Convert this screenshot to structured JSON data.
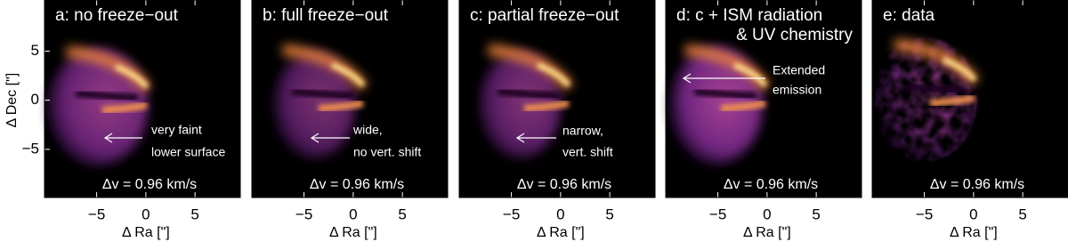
{
  "chart_data": [
    {
      "type": "image",
      "title_lines": [
        "a: no freeze−out"
      ],
      "annotation": [
        "very faint",
        "lower surface"
      ],
      "label": "Δv = 0.96 km/s",
      "xlabel": "Δ Ra [\"]",
      "ylabel": "Δ Dec [\"]",
      "xlim": [
        -10.3,
        9.6
      ],
      "ylim": [
        -9.9,
        10.2
      ],
      "xticks": [
        {
          "value": -5,
          "label": "−5"
        },
        0,
        5
      ],
      "yticks": [
        {
          "value": -5,
          "label": "−5"
        },
        0,
        5
      ]
    },
    {
      "type": "image",
      "title_lines": [
        "b: full freeze−out"
      ],
      "annotation": [
        "wide,",
        "no vert. shift"
      ],
      "label": "Δv = 0.96 km/s",
      "xlabel": "Δ Ra [\"]",
      "xlim": [
        -10.3,
        9.6
      ],
      "ylim": [
        -9.9,
        10.2
      ],
      "xticks": [
        {
          "value": -5,
          "label": "−5"
        },
        0,
        5
      ]
    },
    {
      "type": "image",
      "title_lines": [
        "c: partial freeze−out"
      ],
      "annotation": [
        "narrow,",
        "vert. shift"
      ],
      "label": "Δv = 0.96 km/s",
      "xlabel": "Δ Ra [\"]",
      "xlim": [
        -10.3,
        9.6
      ],
      "ylim": [
        -9.9,
        10.2
      ],
      "xticks": [
        {
          "value": -5,
          "label": "−5"
        },
        0,
        5
      ]
    },
    {
      "type": "image",
      "title_lines": [
        "d: c + ISM radiation",
        "& UV chemistry"
      ],
      "annotation": [
        "Extended",
        "emission"
      ],
      "label": "Δv = 0.96 km/s",
      "xlabel": "Δ Ra [\"]",
      "xlim": [
        -10.3,
        9.6
      ],
      "ylim": [
        -9.9,
        10.2
      ],
      "xticks": [
        {
          "value": -5,
          "label": "−5"
        },
        0,
        5
      ]
    },
    {
      "type": "image",
      "title_lines": [
        "e: data"
      ],
      "label": "Δv = 0.96 km/s",
      "xlabel": "Δ Ra [\"]",
      "xlim": [
        -10.3,
        9.6
      ],
      "ylim": [
        -9.9,
        10.2
      ],
      "xticks": [
        {
          "value": -5,
          "label": "−5"
        },
        0,
        5
      ]
    }
  ]
}
